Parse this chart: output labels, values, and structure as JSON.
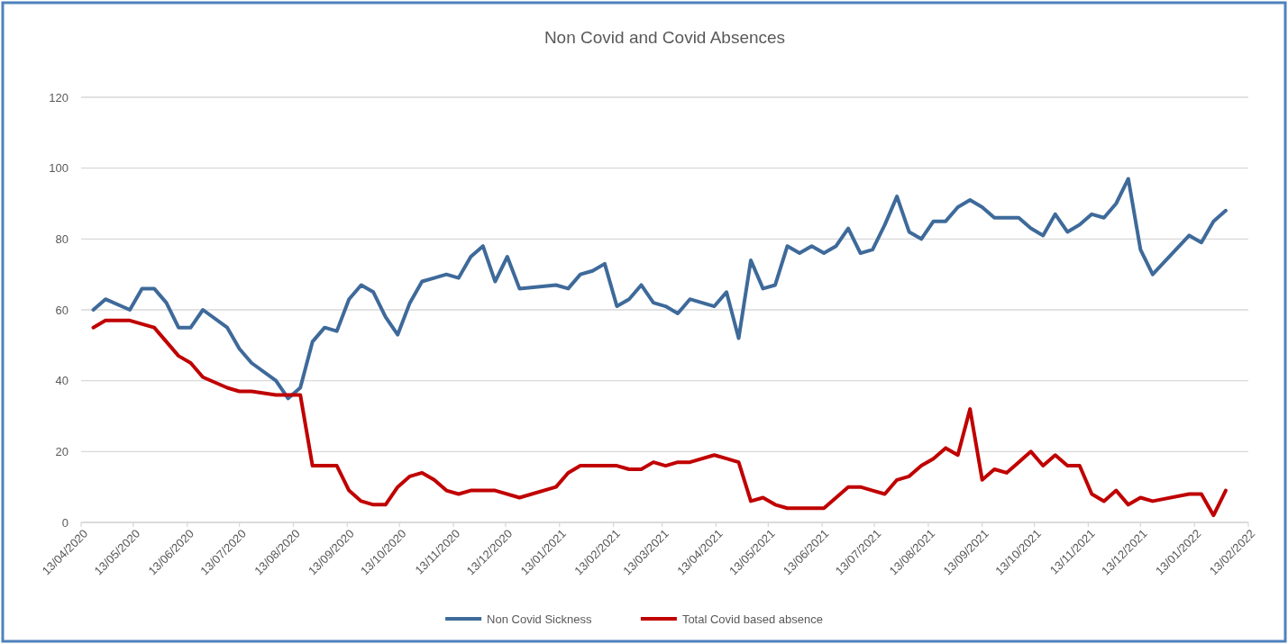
{
  "chart_data": {
    "type": "line",
    "title": "Non Covid and Covid Absences",
    "xlim": [
      "2020-04-13",
      "2022-02-13"
    ],
    "xticks": [
      {
        "value": "2020-04-13",
        "label": "13/04/2020"
      },
      {
        "value": "2020-05-13",
        "label": "13/05/2020"
      },
      {
        "value": "2020-06-13",
        "label": "13/06/2020"
      },
      {
        "value": "2020-07-13",
        "label": "13/07/2020"
      },
      {
        "value": "2020-08-13",
        "label": "13/08/2020"
      },
      {
        "value": "2020-09-13",
        "label": "13/09/2020"
      },
      {
        "value": "2020-10-13",
        "label": "13/10/2020"
      },
      {
        "value": "2020-11-13",
        "label": "13/11/2020"
      },
      {
        "value": "2020-12-13",
        "label": "13/12/2020"
      },
      {
        "value": "2021-01-13",
        "label": "13/01/2021"
      },
      {
        "value": "2021-02-13",
        "label": "13/02/2021"
      },
      {
        "value": "2021-03-13",
        "label": "13/03/2021"
      },
      {
        "value": "2021-04-13",
        "label": "13/04/2021"
      },
      {
        "value": "2021-05-13",
        "label": "13/05/2021"
      },
      {
        "value": "2021-06-13",
        "label": "13/06/2021"
      },
      {
        "value": "2021-07-13",
        "label": "13/07/2021"
      },
      {
        "value": "2021-08-13",
        "label": "13/08/2021"
      },
      {
        "value": "2021-09-13",
        "label": "13/09/2021"
      },
      {
        "value": "2021-10-13",
        "label": "13/10/2021"
      },
      {
        "value": "2021-11-13",
        "label": "13/11/2021"
      },
      {
        "value": "2021-12-13",
        "label": "13/12/2021"
      },
      {
        "value": "2022-01-13",
        "label": "13/01/2022"
      },
      {
        "value": "2022-02-13",
        "label": "13/02/2022"
      }
    ],
    "ylim": [
      0,
      120
    ],
    "yticks": [
      0,
      20,
      40,
      60,
      80,
      100,
      120
    ],
    "grid": "y",
    "legend": "bottom",
    "line_style": "solid",
    "marker": "none",
    "series": [
      {
        "name": "Non Covid Sickness",
        "color": "#3e6a9a",
        "x": [
          "2020-04-20",
          "2020-04-27",
          "2020-05-11",
          "2020-05-18",
          "2020-05-25",
          "2020-06-01",
          "2020-06-08",
          "2020-06-15",
          "2020-06-22",
          "2020-07-06",
          "2020-07-13",
          "2020-07-20",
          "2020-08-03",
          "2020-08-10",
          "2020-08-17",
          "2020-08-24",
          "2020-08-31",
          "2020-09-07",
          "2020-09-14",
          "2020-09-21",
          "2020-09-28",
          "2020-10-05",
          "2020-10-12",
          "2020-10-19",
          "2020-10-26",
          "2020-11-02",
          "2020-11-09",
          "2020-11-16",
          "2020-11-23",
          "2020-11-30",
          "2020-12-07",
          "2020-12-14",
          "2020-12-21",
          "2021-01-11",
          "2021-01-18",
          "2021-01-25",
          "2021-02-01",
          "2021-02-08",
          "2021-02-15",
          "2021-02-22",
          "2021-03-01",
          "2021-03-08",
          "2021-03-15",
          "2021-03-22",
          "2021-03-29",
          "2021-04-12",
          "2021-04-19",
          "2021-04-26",
          "2021-05-03",
          "2021-05-10",
          "2021-05-17",
          "2021-05-24",
          "2021-05-31",
          "2021-06-07",
          "2021-06-14",
          "2021-06-21",
          "2021-06-28",
          "2021-07-05",
          "2021-07-12",
          "2021-07-19",
          "2021-07-26",
          "2021-08-02",
          "2021-08-09",
          "2021-08-16",
          "2021-08-23",
          "2021-08-30",
          "2021-09-06",
          "2021-09-13",
          "2021-09-20",
          "2021-10-04",
          "2021-10-11",
          "2021-10-18",
          "2021-10-25",
          "2021-11-01",
          "2021-11-08",
          "2021-11-15",
          "2021-11-22",
          "2021-11-29",
          "2021-12-06",
          "2021-12-13",
          "2021-12-20",
          "2022-01-10",
          "2022-01-17",
          "2022-01-24",
          "2022-01-31"
        ],
        "values": [
          60,
          63,
          60,
          66,
          66,
          62,
          55,
          55,
          60,
          55,
          49,
          45,
          40,
          35,
          38,
          51,
          55,
          54,
          63,
          67,
          65,
          58,
          53,
          62,
          68,
          69,
          70,
          69,
          75,
          78,
          68,
          75,
          66,
          67,
          66,
          70,
          71,
          73,
          61,
          63,
          67,
          62,
          61,
          59,
          63,
          61,
          65,
          52,
          74,
          66,
          67,
          78,
          76,
          78,
          76,
          78,
          83,
          76,
          77,
          84,
          92,
          82,
          80,
          85,
          85,
          89,
          91,
          89,
          86,
          86,
          83,
          81,
          87,
          82,
          84,
          87,
          86,
          90,
          97,
          77,
          70,
          81,
          79,
          85,
          88
        ]
      },
      {
        "name": "Total Covid based absence",
        "color": "#c00000",
        "x": [
          "2020-04-20",
          "2020-04-27",
          "2020-05-11",
          "2020-05-25",
          "2020-06-01",
          "2020-06-08",
          "2020-06-15",
          "2020-06-22",
          "2020-07-06",
          "2020-07-13",
          "2020-07-20",
          "2020-08-03",
          "2020-08-17",
          "2020-08-24",
          "2020-09-07",
          "2020-09-14",
          "2020-09-21",
          "2020-09-28",
          "2020-10-05",
          "2020-10-12",
          "2020-10-19",
          "2020-10-26",
          "2020-11-02",
          "2020-11-09",
          "2020-11-16",
          "2020-11-23",
          "2020-12-07",
          "2020-12-21",
          "2021-01-11",
          "2021-01-18",
          "2021-01-25",
          "2021-02-15",
          "2021-02-22",
          "2021-03-01",
          "2021-03-08",
          "2021-03-15",
          "2021-03-22",
          "2021-03-29",
          "2021-04-12",
          "2021-04-19",
          "2021-04-26",
          "2021-05-03",
          "2021-05-10",
          "2021-05-17",
          "2021-05-24",
          "2021-06-14",
          "2021-06-21",
          "2021-06-28",
          "2021-07-05",
          "2021-07-12",
          "2021-07-19",
          "2021-07-26",
          "2021-08-02",
          "2021-08-09",
          "2021-08-16",
          "2021-08-23",
          "2021-08-30",
          "2021-09-06",
          "2021-09-13",
          "2021-09-20",
          "2021-09-27",
          "2021-10-04",
          "2021-10-11",
          "2021-10-18",
          "2021-10-25",
          "2021-11-01",
          "2021-11-08",
          "2021-11-15",
          "2021-11-22",
          "2021-11-29",
          "2021-12-06",
          "2021-12-13",
          "2021-12-20",
          "2022-01-10",
          "2022-01-17",
          "2022-01-24",
          "2022-01-31"
        ],
        "values": [
          55,
          57,
          57,
          55,
          51,
          47,
          45,
          41,
          38,
          37,
          37,
          36,
          36,
          16,
          16,
          9,
          6,
          5,
          5,
          10,
          13,
          14,
          12,
          9,
          8,
          9,
          9,
          7,
          10,
          14,
          16,
          16,
          15,
          15,
          17,
          16,
          17,
          17,
          19,
          18,
          17,
          6,
          7,
          5,
          4,
          4,
          7,
          10,
          10,
          9,
          8,
          12,
          13,
          16,
          18,
          21,
          19,
          32,
          12,
          15,
          14,
          17,
          20,
          16,
          19,
          16,
          16,
          8,
          6,
          9,
          5,
          7,
          6,
          8,
          8,
          2,
          9
        ]
      }
    ]
  }
}
